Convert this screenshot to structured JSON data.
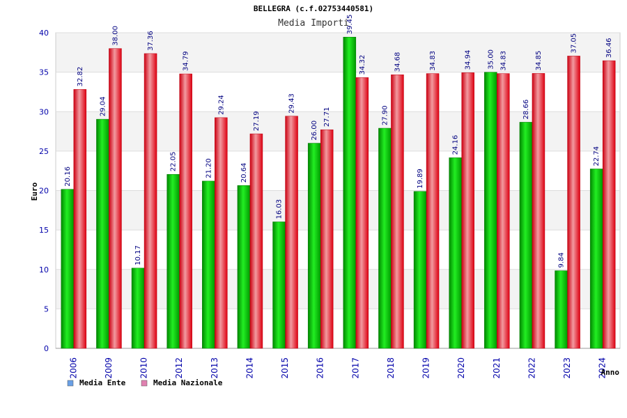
{
  "chart_data": {
    "type": "bar",
    "title": "BELLEGRA (c.f.02753440581)",
    "subtitle": "Media Importi",
    "xlabel": "Anno",
    "ylabel": "Euro",
    "ylim": [
      0,
      40
    ],
    "yticks": [
      0,
      5,
      10,
      15,
      20,
      25,
      30,
      35,
      40
    ],
    "grid": true,
    "legend_position": "bottom-left",
    "categories": [
      "2006",
      "2009",
      "2010",
      "2012",
      "2013",
      "2014",
      "2015",
      "2016",
      "2017",
      "2018",
      "2019",
      "2020",
      "2021",
      "2022",
      "2023",
      "2024"
    ],
    "series": [
      {
        "name": "Media Ente",
        "legend_color": "#6aa0e6",
        "bar_color": "#00cc00",
        "values": [
          20.16,
          29.04,
          10.17,
          22.05,
          21.2,
          20.64,
          16.03,
          26.0,
          39.45,
          27.9,
          19.89,
          24.16,
          35.0,
          28.66,
          9.84,
          22.74
        ]
      },
      {
        "name": "Media Nazionale",
        "legend_color": "#e080b0",
        "bar_color": "#ee1122",
        "values": [
          32.82,
          38.0,
          37.36,
          34.79,
          29.24,
          27.19,
          29.43,
          27.71,
          34.32,
          34.68,
          34.83,
          34.94,
          34.83,
          34.85,
          37.05,
          36.46
        ]
      }
    ]
  }
}
